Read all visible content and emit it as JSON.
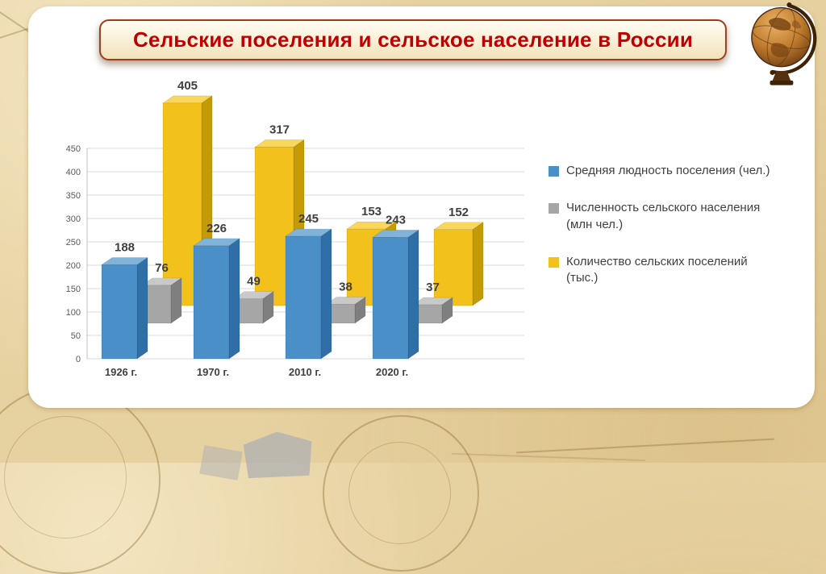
{
  "slide": {
    "title": "Сельские поселения и сельское население в России"
  },
  "chart_data": {
    "type": "bar",
    "style": "3d-clustered-column",
    "title": "",
    "categories": [
      "1926 г.",
      "1970 г.",
      "2010 г.",
      "2020 г."
    ],
    "series": [
      {
        "name": "Средняя людность поселения (чел.)",
        "color": "#4a8fc7",
        "values": [
          188,
          226,
          245,
          243
        ]
      },
      {
        "name": "Численность сельского населения (млн чел.)",
        "color": "#a6a6a6",
        "values": [
          76,
          49,
          38,
          37
        ]
      },
      {
        "name": "Количество сельских поселений (тыс.)",
        "color": "#f2c11c",
        "values": [
          405,
          317,
          153,
          152
        ]
      }
    ],
    "xlabel": "",
    "ylabel": "",
    "ylim": [
      0,
      450
    ],
    "ytick_step": 50,
    "grid": true,
    "legend_position": "right",
    "value_labels": true
  },
  "colors": {
    "title_text": "#c00000",
    "title_border": "#a03c1e",
    "background_parchment": "#e6d1a0",
    "gridline": "#d9d9d9"
  },
  "icons": {
    "globe": "globe-icon"
  }
}
